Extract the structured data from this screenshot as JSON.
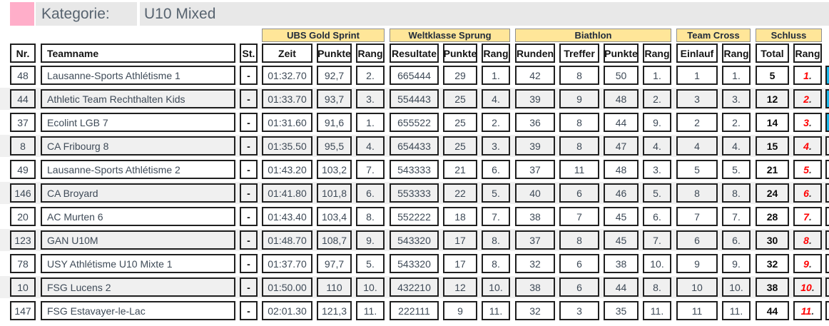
{
  "title": {
    "label": "Kategorie:",
    "value": "U10 Mixed"
  },
  "columns": {
    "nr": "Nr.",
    "team": "Teamname",
    "st": "St."
  },
  "groups": [
    {
      "label": "UBS Gold Sprint",
      "cols": [
        "Zeit",
        "Punkte",
        "Rang"
      ]
    },
    {
      "label": "Weltklasse Sprung",
      "cols": [
        "Resultate",
        "Punkte",
        "Rang"
      ]
    },
    {
      "label": "Biathlon",
      "cols": [
        "Runden",
        "Treffer",
        "Punkte",
        "Rang"
      ]
    },
    {
      "label": "Team Cross",
      "cols": [
        "Einlauf",
        "Rang"
      ]
    },
    {
      "label": "Schluss",
      "cols": [
        "Total",
        "Rang"
      ]
    }
  ],
  "rows": [
    {
      "nr": "48",
      "team": "Lausanne-Sports Athlétisme 1",
      "st": "-",
      "sprint_zeit": "01:32.70",
      "sprint_punkte": "92,7",
      "sprint_rang": "2.",
      "sprung_resultate": "665444",
      "sprung_punkte": "29",
      "sprung_rang": "1.",
      "biathlon_runden": "42",
      "biathlon_treffer": "8",
      "biathlon_punkte": "50",
      "biathlon_rang": "1.",
      "cross_einlauf": "1",
      "cross_rang": "1.",
      "total": "5",
      "rang": "1.",
      "marker": true
    },
    {
      "nr": "44",
      "team": "Athletic Team Rechthalten Kids",
      "st": "-",
      "sprint_zeit": "01:33.70",
      "sprint_punkte": "93,7",
      "sprint_rang": "3.",
      "sprung_resultate": "554443",
      "sprung_punkte": "25",
      "sprung_rang": "4.",
      "biathlon_runden": "39",
      "biathlon_treffer": "9",
      "biathlon_punkte": "48",
      "biathlon_rang": "2.",
      "cross_einlauf": "3",
      "cross_rang": "3.",
      "total": "12",
      "rang": "2.",
      "marker": true
    },
    {
      "nr": "37",
      "team": "Ecolint LGB 7",
      "st": "-",
      "sprint_zeit": "01:31.60",
      "sprint_punkte": "91,6",
      "sprint_rang": "1.",
      "sprung_resultate": "655522",
      "sprung_punkte": "25",
      "sprung_rang": "2.",
      "biathlon_runden": "36",
      "biathlon_treffer": "8",
      "biathlon_punkte": "44",
      "biathlon_rang": "9.",
      "cross_einlauf": "2",
      "cross_rang": "2.",
      "total": "14",
      "rang": "3.",
      "marker": true
    },
    {
      "nr": "8",
      "team": "CA Fribourg 8",
      "st": "-",
      "sprint_zeit": "01:35.50",
      "sprint_punkte": "95,5",
      "sprint_rang": "4.",
      "sprung_resultate": "654433",
      "sprung_punkte": "25",
      "sprung_rang": "3.",
      "biathlon_runden": "39",
      "biathlon_treffer": "8",
      "biathlon_punkte": "47",
      "biathlon_rang": "4.",
      "cross_einlauf": "4",
      "cross_rang": "4.",
      "total": "15",
      "rang": "4.",
      "marker": false
    },
    {
      "nr": "49",
      "team": "Lausanne-Sports Athlétisme 2",
      "st": "-",
      "sprint_zeit": "01:43.20",
      "sprint_punkte": "103,2",
      "sprint_rang": "7.",
      "sprung_resultate": "543333",
      "sprung_punkte": "21",
      "sprung_rang": "6.",
      "biathlon_runden": "37",
      "biathlon_treffer": "11",
      "biathlon_punkte": "48",
      "biathlon_rang": "3.",
      "cross_einlauf": "5",
      "cross_rang": "5.",
      "total": "21",
      "rang": "5.",
      "marker": false
    },
    {
      "nr": "146",
      "team": "CA Broyard",
      "st": "-",
      "sprint_zeit": "01:41.80",
      "sprint_punkte": "101,8",
      "sprint_rang": "6.",
      "sprung_resultate": "553333",
      "sprung_punkte": "22",
      "sprung_rang": "5.",
      "biathlon_runden": "40",
      "biathlon_treffer": "6",
      "biathlon_punkte": "46",
      "biathlon_rang": "5.",
      "cross_einlauf": "8",
      "cross_rang": "8.",
      "total": "24",
      "rang": "6.",
      "marker": false
    },
    {
      "nr": "20",
      "team": "AC Murten 6",
      "st": "-",
      "sprint_zeit": "01:43.40",
      "sprint_punkte": "103,4",
      "sprint_rang": "8.",
      "sprung_resultate": "552222",
      "sprung_punkte": "18",
      "sprung_rang": "7.",
      "biathlon_runden": "38",
      "biathlon_treffer": "7",
      "biathlon_punkte": "45",
      "biathlon_rang": "6.",
      "cross_einlauf": "7",
      "cross_rang": "7.",
      "total": "28",
      "rang": "7.",
      "marker": false
    },
    {
      "nr": "123",
      "team": "GAN U10M",
      "st": "-",
      "sprint_zeit": "01:48.70",
      "sprint_punkte": "108,7",
      "sprint_rang": "9.",
      "sprung_resultate": "543320",
      "sprung_punkte": "17",
      "sprung_rang": "8.",
      "biathlon_runden": "37",
      "biathlon_treffer": "8",
      "biathlon_punkte": "45",
      "biathlon_rang": "7.",
      "cross_einlauf": "6",
      "cross_rang": "6.",
      "total": "30",
      "rang": "8.",
      "marker": false
    },
    {
      "nr": "78",
      "team": "USY Athlétisme U10 Mixte 1",
      "st": "-",
      "sprint_zeit": "01:37.70",
      "sprint_punkte": "97,7",
      "sprint_rang": "5.",
      "sprung_resultate": "543320",
      "sprung_punkte": "17",
      "sprung_rang": "8.",
      "biathlon_runden": "32",
      "biathlon_treffer": "6",
      "biathlon_punkte": "38",
      "biathlon_rang": "10.",
      "cross_einlauf": "9",
      "cross_rang": "9.",
      "total": "32",
      "rang": "9.",
      "marker": false
    },
    {
      "nr": "10",
      "team": "FSG Lucens 2",
      "st": "-",
      "sprint_zeit": "01:50.00",
      "sprint_punkte": "110",
      "sprint_rang": "10.",
      "sprung_resultate": "432210",
      "sprung_punkte": "12",
      "sprung_rang": "10.",
      "biathlon_runden": "38",
      "biathlon_treffer": "6",
      "biathlon_punkte": "44",
      "biathlon_rang": "8.",
      "cross_einlauf": "10",
      "cross_rang": "10.",
      "total": "38",
      "rang": "10.",
      "marker": false
    },
    {
      "nr": "147",
      "team": "FSG Estavayer-le-Lac",
      "st": "-",
      "sprint_zeit": "02:01.30",
      "sprint_punkte": "121,3",
      "sprint_rang": "11.",
      "sprung_resultate": "222111",
      "sprung_punkte": "9",
      "sprung_rang": "11.",
      "biathlon_runden": "32",
      "biathlon_treffer": "3",
      "biathlon_punkte": "35",
      "biathlon_rang": "11.",
      "cross_einlauf": "11",
      "cross_rang": "11.",
      "total": "44",
      "rang": "11.",
      "marker": false
    }
  ],
  "colors": {
    "accent_pink": "#FFAEC9",
    "title_bar_bg": "#E8E8E8",
    "group_header_bg": "#FFE699",
    "row_alt_bg": "#F0F0F0",
    "rank_red": "#FF0000",
    "marker_cyan": "#1CB8EA"
  }
}
